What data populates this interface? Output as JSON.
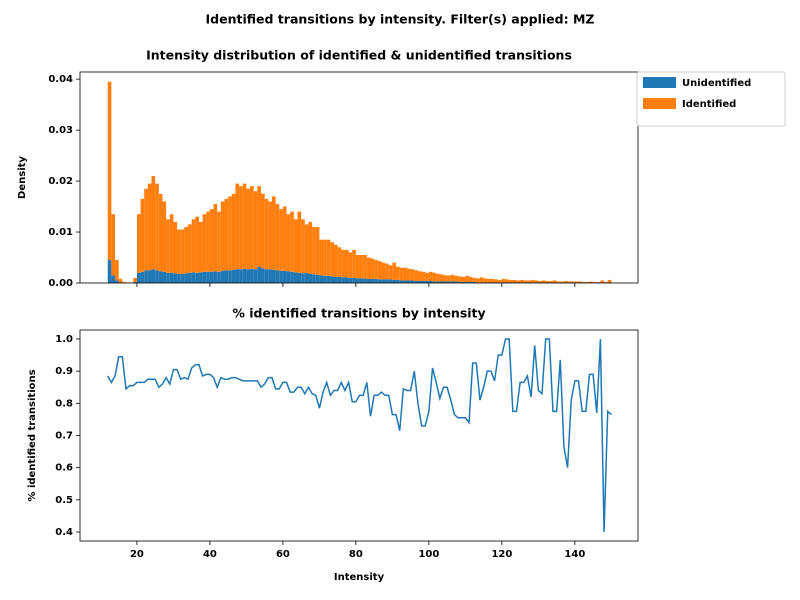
{
  "title": "Identified transitions by intensity. Filter(s) applied: MZ",
  "chart_data": [
    {
      "type": "histogram",
      "stacked": true,
      "title": "Intensity distribution of identified & unidentified transitions",
      "ylabel": "Density",
      "bins": [
        12,
        13,
        14,
        15,
        16,
        17,
        18,
        19,
        20,
        21,
        22,
        23,
        24,
        25,
        26,
        27,
        28,
        29,
        30,
        31,
        32,
        33,
        34,
        35,
        36,
        37,
        38,
        39,
        40,
        41,
        42,
        43,
        44,
        45,
        46,
        47,
        48,
        49,
        50,
        51,
        52,
        53,
        54,
        55,
        56,
        57,
        58,
        59,
        60,
        61,
        62,
        63,
        64,
        65,
        66,
        67,
        68,
        69,
        70,
        71,
        72,
        73,
        74,
        75,
        76,
        77,
        78,
        79,
        80,
        81,
        82,
        83,
        84,
        85,
        86,
        87,
        88,
        89,
        90,
        91,
        92,
        93,
        94,
        95,
        96,
        97,
        98,
        99,
        100,
        101,
        102,
        103,
        104,
        105,
        106,
        107,
        108,
        109,
        110,
        111,
        112,
        113,
        114,
        115,
        116,
        117,
        118,
        119,
        120,
        121,
        122,
        123,
        124,
        125,
        126,
        127,
        128,
        129,
        130,
        131,
        132,
        133,
        134,
        135,
        136,
        137,
        138,
        139,
        140,
        141,
        142,
        143,
        144,
        145,
        146,
        147,
        148,
        149,
        150
      ],
      "series": [
        {
          "name": "Unidentified",
          "color": "#1f77b4",
          "values": [
            0.0045,
            0.0015,
            0.0005,
            0.0001,
            0,
            0,
            0,
            0.0002,
            0.002,
            0.0022,
            0.0025,
            0.0025,
            0.0027,
            0.0025,
            0.0023,
            0.0022,
            0.002,
            0.002,
            0.0019,
            0.0018,
            0.0018,
            0.0019,
            0.002,
            0.0021,
            0.002,
            0.0021,
            0.0022,
            0.0022,
            0.0022,
            0.0023,
            0.0022,
            0.0024,
            0.0025,
            0.0025,
            0.0026,
            0.0027,
            0.0027,
            0.0028,
            0.0027,
            0.0028,
            0.0027,
            0.0032,
            0.0029,
            0.0027,
            0.0027,
            0.0026,
            0.0025,
            0.0024,
            0.0024,
            0.0023,
            0.0022,
            0.0021,
            0.002,
            0.0019,
            0.002,
            0.0018,
            0.0017,
            0.0016,
            0.0015,
            0.0014,
            0.0014,
            0.0013,
            0.0012,
            0.0012,
            0.0011,
            0.0011,
            0.001,
            0.001,
            0.0009,
            0.0009,
            0.0009,
            0.0008,
            0.0008,
            0.0008,
            0.0007,
            0.0007,
            0.0007,
            0.0007,
            0.0006,
            0.0006,
            0.0005,
            0.0005,
            0.0005,
            0.0005,
            0.0004,
            0.0004,
            0.0004,
            0.0004,
            0.0004,
            0.0003,
            0.0003,
            0.0003,
            0.0003,
            0.0003,
            0.0003,
            0.0003,
            0.0002,
            0.0002,
            0.0002,
            0.0002,
            0.0002,
            0.0001,
            0.0001,
            0.0001,
            0.0001,
            0.0001,
            0.0001,
            0.0001,
            0.0001,
            0.0001,
            0.0001,
            0.0001,
            0.0001,
            0.0001,
            0.0001,
            0.0001,
            0.0001,
            0.0001,
            0.0001,
            0.0001,
            0.0001,
            0.0001,
            0.0001,
            0.0001,
            0.0001,
            0.0001,
            0.0001,
            0.0001,
            0.0001,
            0.0001,
            0.0001,
            0.0001,
            0.0001,
            0.0001,
            0.0001,
            0.0001,
            0.0001,
            0.0001
          ]
        },
        {
          "name": "Identified",
          "color": "#ff7f0e",
          "values": [
            0.035,
            0.012,
            0.004,
            0.0007,
            0.0002,
            0.0001,
            0.0001,
            0.0008,
            0.0115,
            0.0143,
            0.016,
            0.017,
            0.0183,
            0.017,
            0.0152,
            0.0138,
            0.0105,
            0.0115,
            0.0101,
            0.0087,
            0.0087,
            0.0091,
            0.0095,
            0.0104,
            0.011,
            0.0099,
            0.0113,
            0.0118,
            0.0123,
            0.0132,
            0.0118,
            0.0136,
            0.014,
            0.0145,
            0.0149,
            0.0168,
            0.0163,
            0.0167,
            0.0158,
            0.0162,
            0.0153,
            0.0158,
            0.0146,
            0.0138,
            0.0133,
            0.0144,
            0.013,
            0.0121,
            0.0126,
            0.0112,
            0.0118,
            0.0104,
            0.012,
            0.0106,
            0.0095,
            0.0102,
            0.0093,
            0.0094,
            0.007,
            0.0071,
            0.0071,
            0.0067,
            0.0063,
            0.0058,
            0.0054,
            0.0054,
            0.005,
            0.0055,
            0.0046,
            0.0046,
            0.0046,
            0.0042,
            0.004,
            0.0037,
            0.0036,
            0.0033,
            0.0031,
            0.0028,
            0.0034,
            0.0026,
            0.0025,
            0.0025,
            0.0023,
            0.0022,
            0.0021,
            0.0019,
            0.0018,
            0.0016,
            0.0018,
            0.0017,
            0.0015,
            0.0014,
            0.0012,
            0.0012,
            0.0013,
            0.0011,
            0.0011,
            0.001,
            0.0012,
            0.001,
            0.0008,
            0.0008,
            0.001,
            0.0008,
            0.0007,
            0.0007,
            0.0006,
            0.0005,
            0.0007,
            0.0006,
            0.0005,
            0.0005,
            0.0004,
            0.0005,
            0.0004,
            0.0004,
            0.0005,
            0.0004,
            0.0003,
            0.0004,
            0.0003,
            0.0003,
            0.0004,
            0.0002,
            0.0002,
            0.0003,
            0.0002,
            0.0002,
            0.0002,
            0.0002,
            0.0001,
            0.0001,
            0.0002,
            0.0001,
            0.0001,
            0.0004,
            0.0001,
            0.0005
          ]
        }
      ],
      "xlim": [
        4.4,
        157.3
      ],
      "xticks": [
        20,
        40,
        60,
        80,
        100,
        120,
        140
      ],
      "ylim": [
        0,
        0.0414
      ],
      "yticks": [
        {
          "value": 0,
          "label": "0.00"
        },
        {
          "value": 0.01,
          "label": "0.01"
        },
        {
          "value": 0.02,
          "label": "0.02"
        },
        {
          "value": 0.03,
          "label": "0.03"
        },
        {
          "value": 0.04,
          "label": "0.04"
        }
      ],
      "legend": "outside upper right"
    },
    {
      "type": "line",
      "title": "% identified transitions by intensity",
      "xlabel": "Intensity",
      "ylabel": "% identified transitions",
      "color": "#1f77b4",
      "x": [
        12,
        13,
        14,
        15,
        16,
        17,
        18,
        19,
        20,
        21,
        22,
        23,
        24,
        25,
        26,
        27,
        28,
        29,
        30,
        31,
        32,
        33,
        34,
        35,
        36,
        37,
        38,
        39,
        40,
        41,
        42,
        43,
        44,
        45,
        46,
        47,
        48,
        49,
        50,
        51,
        52,
        53,
        54,
        55,
        56,
        57,
        58,
        59,
        60,
        61,
        62,
        63,
        64,
        65,
        66,
        67,
        68,
        69,
        70,
        71,
        72,
        73,
        74,
        75,
        76,
        77,
        78,
        79,
        80,
        81,
        82,
        83,
        84,
        85,
        86,
        87,
        88,
        89,
        90,
        91,
        92,
        93,
        94,
        95,
        96,
        97,
        98,
        99,
        100,
        101,
        102,
        103,
        104,
        105,
        106,
        107,
        108,
        109,
        110,
        111,
        112,
        113,
        114,
        115,
        116,
        117,
        118,
        119,
        120,
        121,
        122,
        123,
        124,
        125,
        126,
        127,
        128,
        129,
        130,
        131,
        132,
        133,
        134,
        135,
        136,
        137,
        138,
        139,
        140,
        141,
        142,
        143,
        144,
        145,
        146,
        147,
        148,
        149,
        150
      ],
      "values": [
        0.885,
        0.865,
        0.885,
        0.945,
        0.945,
        0.845,
        0.855,
        0.855,
        0.865,
        0.865,
        0.865,
        0.875,
        0.875,
        0.875,
        0.85,
        0.86,
        0.88,
        0.86,
        0.905,
        0.905,
        0.875,
        0.88,
        0.875,
        0.91,
        0.92,
        0.92,
        0.885,
        0.89,
        0.89,
        0.88,
        0.85,
        0.88,
        0.875,
        0.875,
        0.88,
        0.88,
        0.875,
        0.87,
        0.87,
        0.87,
        0.87,
        0.87,
        0.85,
        0.86,
        0.88,
        0.88,
        0.845,
        0.845,
        0.865,
        0.865,
        0.835,
        0.835,
        0.85,
        0.85,
        0.83,
        0.85,
        0.83,
        0.825,
        0.785,
        0.835,
        0.865,
        0.825,
        0.84,
        0.84,
        0.865,
        0.84,
        0.865,
        0.805,
        0.805,
        0.825,
        0.825,
        0.865,
        0.76,
        0.825,
        0.825,
        0.835,
        0.825,
        0.825,
        0.765,
        0.765,
        0.715,
        0.845,
        0.84,
        0.84,
        0.9,
        0.8,
        0.73,
        0.73,
        0.775,
        0.91,
        0.865,
        0.815,
        0.85,
        0.85,
        0.81,
        0.765,
        0.755,
        0.755,
        0.755,
        0.74,
        0.925,
        0.925,
        0.81,
        0.85,
        0.9,
        0.9,
        0.87,
        0.95,
        0.95,
        1.0,
        1.0,
        0.775,
        0.775,
        0.865,
        0.865,
        0.885,
        0.82,
        0.98,
        0.84,
        0.83,
        1.0,
        1.0,
        0.775,
        0.775,
        0.935,
        0.665,
        0.6,
        0.81,
        0.87,
        0.87,
        0.775,
        0.775,
        0.89,
        0.89,
        0.77,
        1.0,
        0.4,
        0.775,
        0.765
      ],
      "xlim": [
        4.4,
        157.3
      ],
      "xticks": [
        20,
        40,
        60,
        80,
        100,
        120,
        140
      ],
      "ylim": [
        0.372,
        1.028
      ],
      "yticks": [
        0.4,
        0.5,
        0.6,
        0.7,
        0.8,
        0.9,
        {
          "value": 1,
          "label": "1.0"
        }
      ]
    }
  ]
}
